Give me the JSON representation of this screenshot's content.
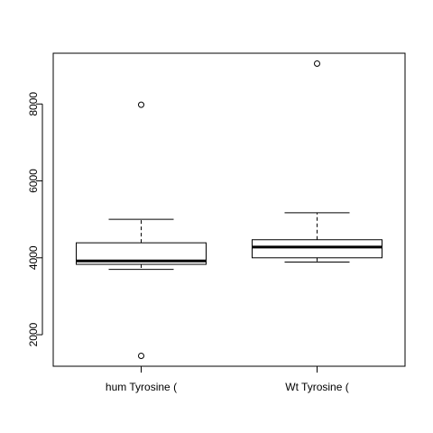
{
  "chart_data": {
    "type": "boxplot",
    "title": "",
    "xlabel": "",
    "ylabel": "",
    "ylim": [
      1180,
      9320
    ],
    "y_ticks": [
      2000,
      4000,
      6000,
      8000
    ],
    "y_tick_labels": [
      "2000",
      "4000",
      "6000",
      "8000"
    ],
    "grid": false,
    "legend": "none",
    "colors": {
      "stroke": "#000000",
      "fill": "#ffffff",
      "background": "#ffffff"
    },
    "categories": [
      "hum Tyrosine (",
      "Wt Tyrosine ("
    ],
    "boxes": [
      {
        "category": "hum Tyrosine (",
        "whisker_low": 3700,
        "q1": 3830,
        "median": 3920,
        "q3": 4390,
        "whisker_high": 5000,
        "outliers": [
          7980,
          1450
        ]
      },
      {
        "category": "Wt Tyrosine (",
        "whisker_low": 3890,
        "q1": 4000,
        "median": 4280,
        "q3": 4470,
        "whisker_high": 5170,
        "outliers": [
          9050
        ]
      }
    ]
  }
}
